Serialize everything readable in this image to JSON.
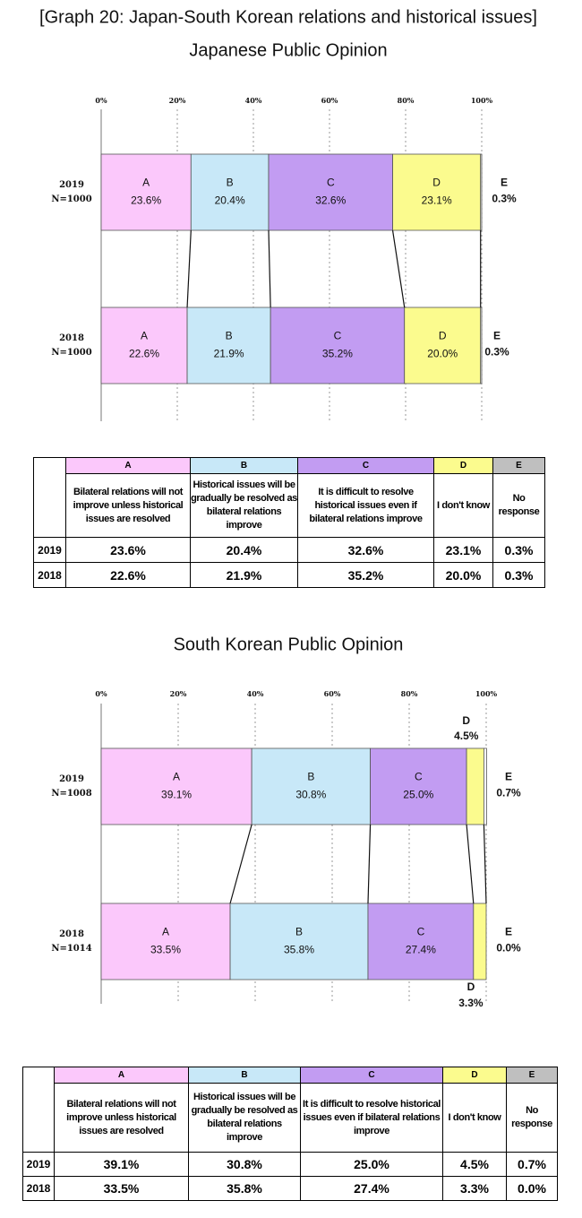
{
  "title": "[Graph 20: Japan-South Korean relations and historical issues]",
  "chart_data": [
    {
      "type": "stacked-bar",
      "orientation": "horizontal",
      "title": "Japanese Public Opinion",
      "categories": [
        "2019",
        "2018"
      ],
      "sample_sizes": [
        "N=1000",
        "N=1000"
      ],
      "xlim": [
        0,
        100
      ],
      "xticks": [
        {
          "value": 0,
          "label": "0%"
        },
        {
          "value": 20,
          "label": "20%"
        },
        {
          "value": 40,
          "label": "40%"
        },
        {
          "value": 60,
          "label": "60%"
        },
        {
          "value": 80,
          "label": "80%"
        },
        {
          "value": 100,
          "label": "100%"
        }
      ],
      "grid": true,
      "series": [
        {
          "name": "A",
          "color": "#fbc8fb",
          "values": [
            23.6,
            22.6
          ],
          "value_labels": [
            "23.6%",
            "22.6%"
          ]
        },
        {
          "name": "B",
          "color": "#c8e8f8",
          "values": [
            20.4,
            21.9
          ],
          "value_labels": [
            "20.4%",
            "21.9%"
          ]
        },
        {
          "name": "C",
          "color": "#c29cf2",
          "values": [
            32.6,
            35.2
          ],
          "value_labels": [
            "32.6%",
            "35.2%"
          ]
        },
        {
          "name": "D",
          "color": "#fbfb8e",
          "values": [
            23.1,
            20.0
          ],
          "value_labels": [
            "23.1%",
            "20.0%"
          ]
        },
        {
          "name": "E",
          "color": "#ffffff",
          "values": [
            0.3,
            0.3
          ],
          "value_labels": [
            "0.3%",
            "0.3%"
          ]
        }
      ]
    },
    {
      "type": "stacked-bar",
      "orientation": "horizontal",
      "title": "South Korean Public Opinion",
      "categories": [
        "2019",
        "2018"
      ],
      "sample_sizes": [
        "N=1008",
        "N=1014"
      ],
      "xlim": [
        0,
        100
      ],
      "xticks": [
        {
          "value": 0,
          "label": "0%"
        },
        {
          "value": 20,
          "label": "20%"
        },
        {
          "value": 40,
          "label": "40%"
        },
        {
          "value": 60,
          "label": "60%"
        },
        {
          "value": 80,
          "label": "80%"
        },
        {
          "value": 100,
          "label": "100%"
        }
      ],
      "grid": true,
      "series": [
        {
          "name": "A",
          "color": "#fbc8fb",
          "values": [
            39.1,
            33.5
          ],
          "value_labels": [
            "39.1%",
            "33.5%"
          ]
        },
        {
          "name": "B",
          "color": "#c8e8f8",
          "values": [
            30.8,
            35.8
          ],
          "value_labels": [
            "30.8%",
            "35.8%"
          ]
        },
        {
          "name": "C",
          "color": "#c29cf2",
          "values": [
            25.0,
            27.4
          ],
          "value_labels": [
            "25.0%",
            "27.4%"
          ]
        },
        {
          "name": "D",
          "color": "#fbfb8e",
          "values": [
            4.5,
            3.3
          ],
          "value_labels": [
            "4.5%",
            "3.3%"
          ]
        },
        {
          "name": "E",
          "color": "#ffffff",
          "values": [
            0.7,
            0.0
          ],
          "value_labels": [
            "0.7%",
            "0.0%"
          ]
        }
      ]
    }
  ],
  "tables": [
    {
      "header": [
        "A",
        "B",
        "C",
        "D",
        "E"
      ],
      "descriptions": [
        "Bilateral relations will not improve unless historical issues are resolved",
        "Historical issues will be gradually be resolved as bilateral relations improve",
        "It is difficult to resolve historical issues even if bilateral relations improve",
        "I don't know",
        "No response"
      ],
      "rows": [
        [
          "2019",
          "23.6%",
          "20.4%",
          "32.6%",
          "23.1%",
          "0.3%"
        ],
        [
          "2018",
          "22.6%",
          "21.9%",
          "35.2%",
          "20.0%",
          "0.3%"
        ]
      ]
    },
    {
      "header": [
        "A",
        "B",
        "C",
        "D",
        "E"
      ],
      "descriptions": [
        "Bilateral relations will not improve unless historical issues are resolved",
        "Historical issues will be gradually be resolved as bilateral relations improve",
        "It is difficult to resolve historical issues even if bilateral relations improve",
        "I don't know",
        "No response"
      ],
      "rows": [
        [
          "2019",
          "39.1%",
          "30.8%",
          "25.0%",
          "4.5%",
          "0.7%"
        ],
        [
          "2018",
          "33.5%",
          "35.8%",
          "27.4%",
          "3.3%",
          "0.0%"
        ]
      ]
    }
  ]
}
